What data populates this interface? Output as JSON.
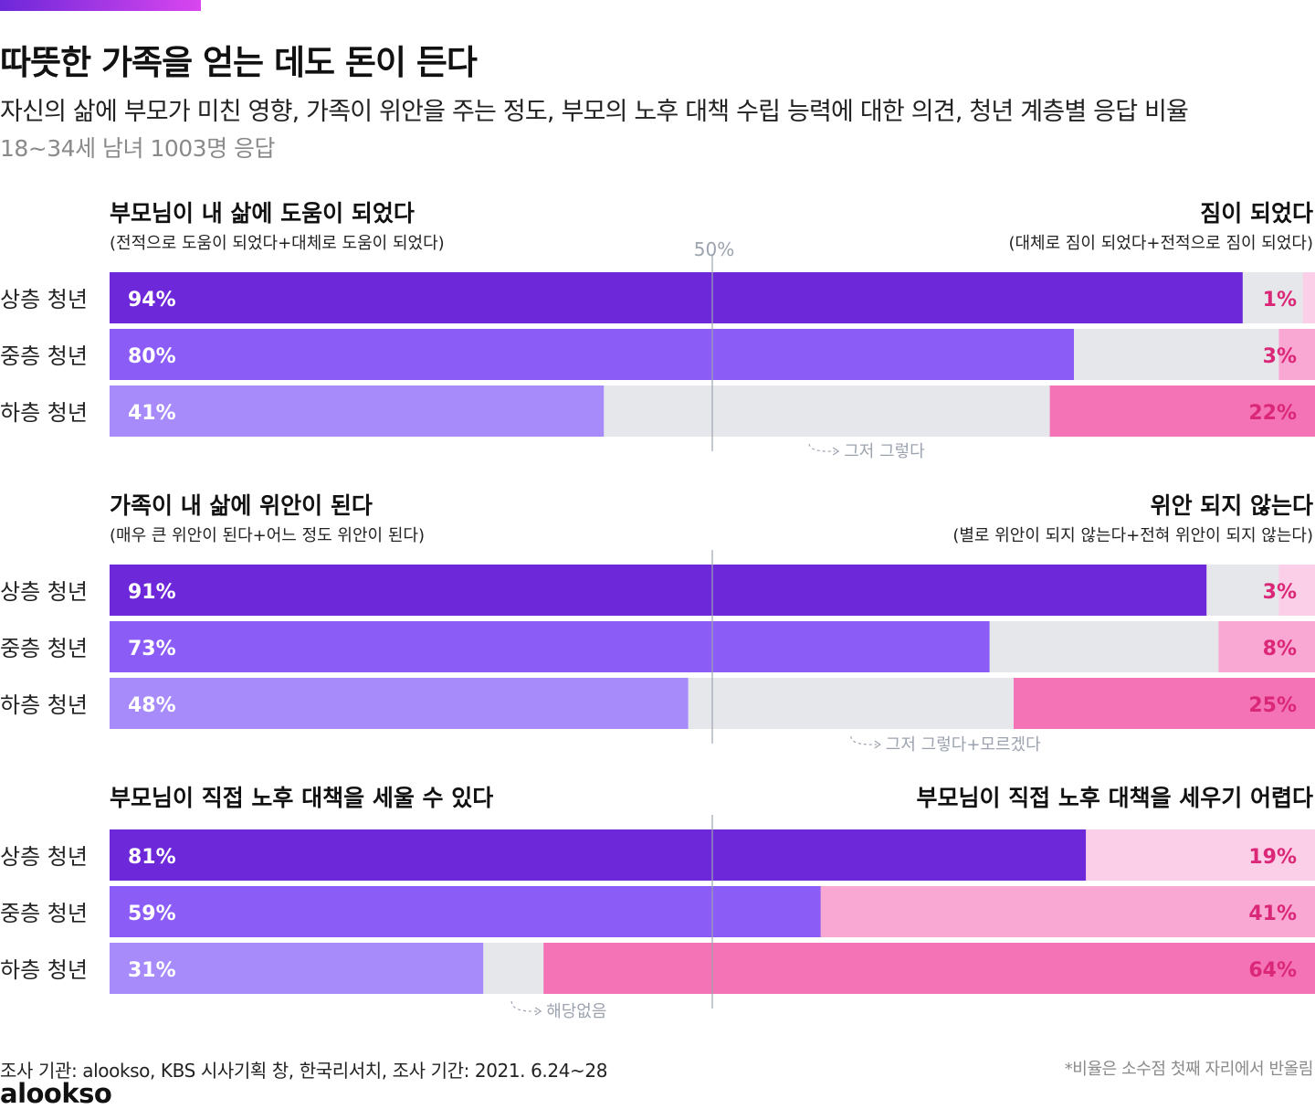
{
  "header": {
    "title": "따뜻한 가족을 얻는 데도 돈이 든다",
    "subtitle": "자신의 삶에 부모가 미친 영향, 가족이 위안을 주는 정도, 부모의 노후 대책 수립 능력에 대한 의견, 청년 계층별 응답 비율",
    "note": "18~34세 남녀 1003명 응답"
  },
  "footer": {
    "source": "조사 기관: alookso, KBS 시사기획 창, 한국리서치, 조사 기간: 2021. 6.24~28",
    "rounding_note": "*비율은 소수점 첫째 자리에서 반올림",
    "logo": "alookso"
  },
  "colors": {
    "top": "#6d28d9",
    "mid": "#8b5cf6",
    "low": "#a78bfa",
    "neutral": "#e5e7eb",
    "right_top": "#fbcfe8",
    "right_mid": "#f9a8d4",
    "right_low": "#f472b6",
    "right_text": "#db2777"
  },
  "chart_data": [
    {
      "type": "bar",
      "stacked": true,
      "orientation": "horizontal",
      "left_title": "부모님이 내 삶에 도움이 되었다",
      "left_subtitle": "(전적으로 도움이 되었다+대체로 도움이 되었다)",
      "right_title": "짐이 되었다",
      "right_subtitle": "(대체로 짐이 되었다+전적으로 짐이 되었다)",
      "midline_label": "50%",
      "neutral_label": "그저 그렇다",
      "categories": [
        "상층 청년",
        "중층 청년",
        "하층 청년"
      ],
      "series": [
        {
          "name": "부모님이 내 삶에 도움이 되었다",
          "values": [
            94,
            80,
            41
          ],
          "labels": [
            "94%",
            "80%",
            "41%"
          ]
        },
        {
          "name": "그저 그렇다",
          "values": [
            5,
            17,
            37
          ]
        },
        {
          "name": "짐이 되었다",
          "values": [
            1,
            3,
            22
          ],
          "labels": [
            "1%",
            "3%",
            "22%"
          ]
        }
      ],
      "xlim": [
        0,
        100
      ]
    },
    {
      "type": "bar",
      "stacked": true,
      "orientation": "horizontal",
      "left_title": "가족이 내 삶에 위안이 된다",
      "left_subtitle": "(매우 큰 위안이 된다+어느 정도 위안이 된다)",
      "right_title": "위안 되지 않는다",
      "right_subtitle": "(별로 위안이 되지 않는다+전혀 위안이 되지 않는다)",
      "neutral_label": "그저 그렇다+모르겠다",
      "categories": [
        "상층 청년",
        "중층 청년",
        "하층 청년"
      ],
      "series": [
        {
          "name": "가족이 내 삶에 위안이 된다",
          "values": [
            91,
            73,
            48
          ],
          "labels": [
            "91%",
            "73%",
            "48%"
          ]
        },
        {
          "name": "그저 그렇다+모르겠다",
          "values": [
            6,
            19,
            27
          ]
        },
        {
          "name": "위안 되지 않는다",
          "values": [
            3,
            8,
            25
          ],
          "labels": [
            "3%",
            "8%",
            "25%"
          ]
        }
      ],
      "xlim": [
        0,
        100
      ]
    },
    {
      "type": "bar",
      "stacked": true,
      "orientation": "horizontal",
      "left_title": "부모님이 직접 노후 대책을 세울 수 있다",
      "left_subtitle": "",
      "right_title": "부모님이 직접 노후 대책을 세우기 어렵다",
      "right_subtitle": "",
      "neutral_label": "해당없음",
      "categories": [
        "상층 청년",
        "중층 청년",
        "하층 청년"
      ],
      "series": [
        {
          "name": "부모님이 직접 노후 대책을 세울 수 있다",
          "values": [
            81,
            59,
            31
          ],
          "labels": [
            "81%",
            "59%",
            "31%"
          ]
        },
        {
          "name": "해당없음",
          "values": [
            0,
            0,
            5
          ]
        },
        {
          "name": "부모님이 직접 노후 대책을 세우기 어렵다",
          "values": [
            19,
            41,
            64
          ],
          "labels": [
            "19%",
            "41%",
            "64%"
          ]
        }
      ],
      "xlim": [
        0,
        100
      ]
    }
  ]
}
